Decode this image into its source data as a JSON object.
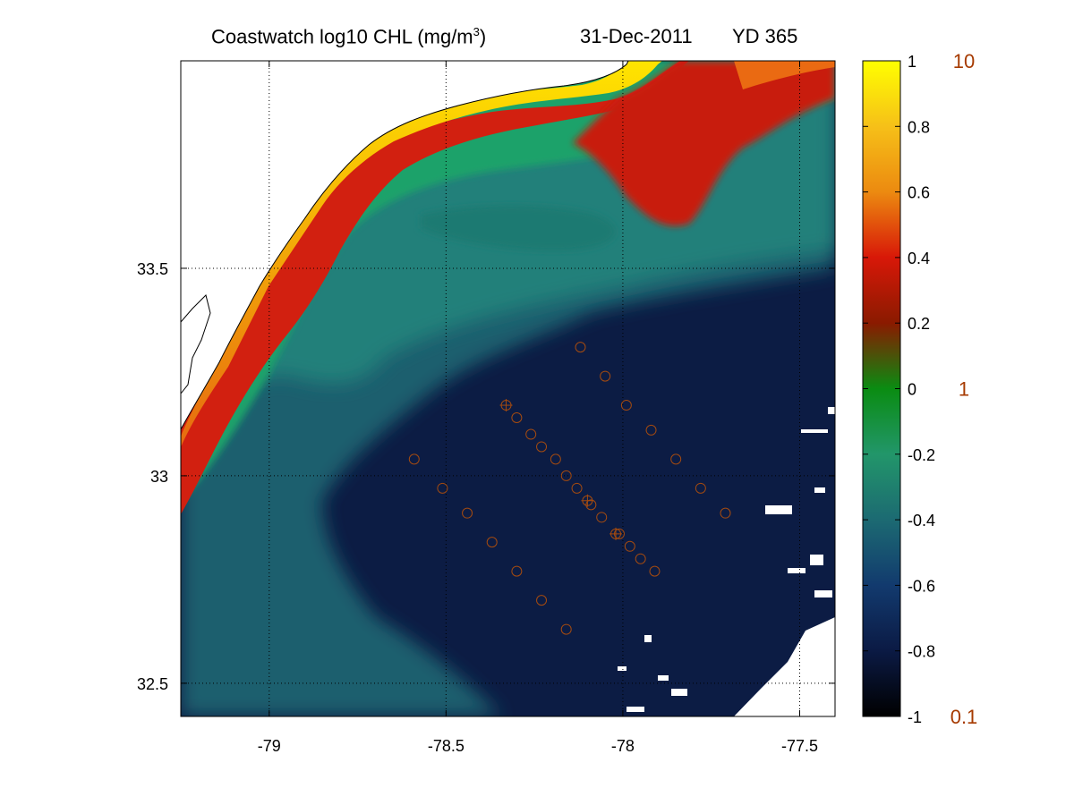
{
  "title": {
    "prefix": "Coastwatch  log10  CHL (mg/m",
    "superscript": "3",
    "suffix": ")",
    "date": "31-Dec-2011",
    "yearday": "YD 365"
  },
  "map": {
    "lon_range": [
      -79.25,
      -77.4
    ],
    "lat_range": [
      32.42,
      34.0
    ],
    "x_ticks": [
      {
        "value": -79.0,
        "label": "-79"
      },
      {
        "value": -78.5,
        "label": "-78.5"
      },
      {
        "value": -78.0,
        "label": "-78"
      },
      {
        "value": -77.5,
        "label": "-77.5"
      }
    ],
    "y_ticks": [
      {
        "value": 33.5,
        "label": "33.5"
      },
      {
        "value": 33.0,
        "label": "33"
      },
      {
        "value": 32.5,
        "label": "32.5"
      }
    ],
    "grid": "dotted",
    "stations": [
      {
        "lon": -78.12,
        "lat": 33.31
      },
      {
        "lon": -78.05,
        "lat": 33.24
      },
      {
        "lon": -77.99,
        "lat": 33.17
      },
      {
        "lon": -77.92,
        "lat": 33.11
      },
      {
        "lon": -77.85,
        "lat": 33.04
      },
      {
        "lon": -77.78,
        "lat": 32.97
      },
      {
        "lon": -77.71,
        "lat": 32.91
      },
      {
        "lon": -78.33,
        "lat": 33.17
      },
      {
        "lon": -78.3,
        "lat": 33.14
      },
      {
        "lon": -78.26,
        "lat": 33.1
      },
      {
        "lon": -78.23,
        "lat": 33.07
      },
      {
        "lon": -78.19,
        "lat": 33.04
      },
      {
        "lon": -78.16,
        "lat": 33.0
      },
      {
        "lon": -78.13,
        "lat": 32.97
      },
      {
        "lon": -78.1,
        "lat": 32.94
      },
      {
        "lon": -78.09,
        "lat": 32.93
      },
      {
        "lon": -78.06,
        "lat": 32.9
      },
      {
        "lon": -78.02,
        "lat": 32.86
      },
      {
        "lon": -78.01,
        "lat": 32.86
      },
      {
        "lon": -77.98,
        "lat": 32.83
      },
      {
        "lon": -77.95,
        "lat": 32.8
      },
      {
        "lon": -77.91,
        "lat": 32.77
      },
      {
        "lon": -78.59,
        "lat": 33.04
      },
      {
        "lon": -78.51,
        "lat": 32.97
      },
      {
        "lon": -78.44,
        "lat": 32.91
      },
      {
        "lon": -78.37,
        "lat": 32.84
      },
      {
        "lon": -78.3,
        "lat": 32.77
      },
      {
        "lon": -78.23,
        "lat": 32.7
      },
      {
        "lon": -78.16,
        "lat": 32.63
      }
    ],
    "station_markers_crossed": [
      {
        "lon": -78.33,
        "lat": 33.17
      },
      {
        "lon": -78.1,
        "lat": 32.94
      },
      {
        "lon": -78.02,
        "lat": 32.86
      }
    ]
  },
  "colorbar": {
    "range": [
      -1,
      1
    ],
    "ticks": [
      {
        "value": 1,
        "label": "1"
      },
      {
        "value": 0.8,
        "label": "0.8"
      },
      {
        "value": 0.6,
        "label": "0.6"
      },
      {
        "value": 0.4,
        "label": "0.4"
      },
      {
        "value": 0.2,
        "label": "0.2"
      },
      {
        "value": 0,
        "label": "0"
      },
      {
        "value": -0.2,
        "label": "-0.2"
      },
      {
        "value": -0.4,
        "label": "-0.4"
      },
      {
        "value": -0.6,
        "label": "-0.6"
      },
      {
        "value": -0.8,
        "label": "-0.8"
      },
      {
        "value": -1,
        "label": "-1"
      }
    ],
    "real_units": [
      {
        "value": 1,
        "label": "10"
      },
      {
        "value": 0,
        "label": "1"
      },
      {
        "value": -1,
        "label": "0.1"
      }
    ],
    "stops": [
      "#000000",
      "#0b1a44",
      "#123a6e",
      "#1c6a72",
      "#22966a",
      "#0a8c12",
      "#8a1a00",
      "#d81808",
      "#ec8a10",
      "#f6c018",
      "#ffff00"
    ],
    "real_unit_color": "#a63a00"
  },
  "colors": {
    "deep_water": "#0c1c44",
    "shelf_water": "#1f6f74",
    "coastal_green": "#1fa26a",
    "coastal_red": "#d22010",
    "coastal_orange": "#ee8a14",
    "coastal_yellow": "#ffe000",
    "land": "#ffffff",
    "station_color": "#a34a10"
  }
}
